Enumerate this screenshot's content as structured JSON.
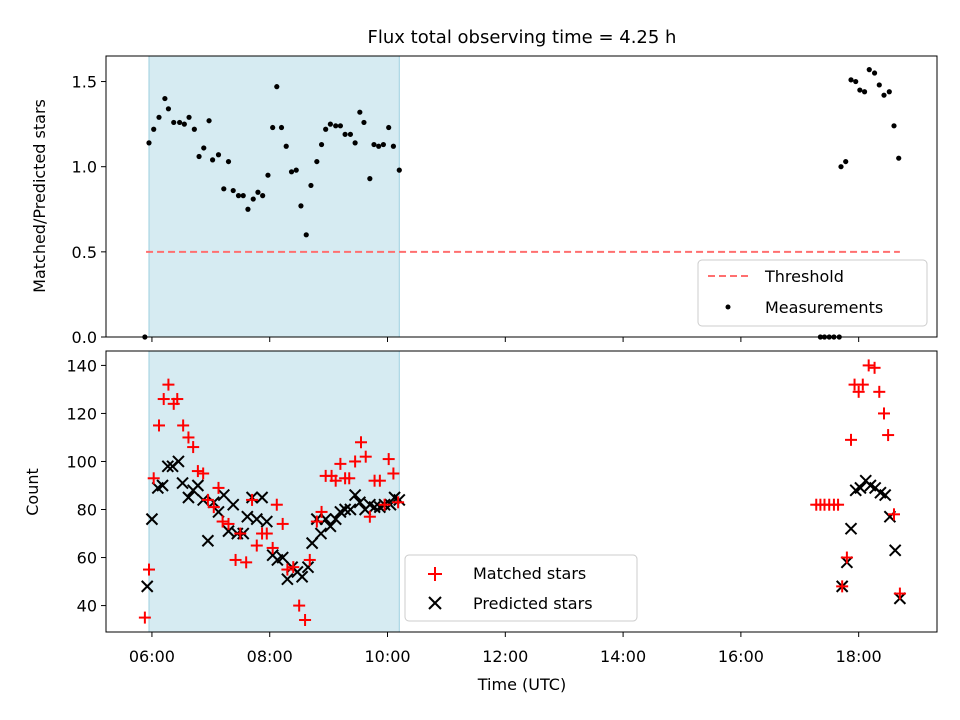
{
  "chart_data": {
    "title": "Flux total observing time = 4.25 h",
    "x_tick_labels": [
      "06:00",
      "08:00",
      "10:00",
      "12:00",
      "14:00",
      "16:00",
      "18:00"
    ],
    "x_ticks_hours": [
      6,
      8,
      10,
      12,
      14,
      16,
      18
    ],
    "xlabel": "Time (UTC)",
    "xlim_hours": [
      5.22,
      19.33
    ],
    "shaded_interval_hours": [
      5.95,
      10.2
    ],
    "colors": {
      "matched": "#ff0000",
      "predicted": "#000000",
      "threshold": "#ff6f6f",
      "shade": "#add8e6",
      "measurement": "#000000"
    },
    "panels": [
      {
        "type": "scatter",
        "ylabel": "Matched/Predicted stars",
        "ylim": [
          0,
          1.65
        ],
        "y_ticks": [
          0.0,
          0.5,
          1.0,
          1.5
        ],
        "y_tick_labels": [
          "0.0",
          "0.5",
          "1.0",
          "1.5"
        ],
        "threshold": {
          "label": "Threshold",
          "y": 0.5,
          "x_range_hours": [
            5.9,
            18.7
          ]
        },
        "legend": [
          "Threshold",
          "Measurements"
        ],
        "legend_position": "lower-right",
        "series": [
          {
            "name": "Measurements",
            "points": [
              [
                5.88,
                0.0
              ],
              [
                5.95,
                1.14
              ],
              [
                6.03,
                1.22
              ],
              [
                6.12,
                1.29
              ],
              [
                6.22,
                1.4
              ],
              [
                6.28,
                1.34
              ],
              [
                6.37,
                1.26
              ],
              [
                6.47,
                1.26
              ],
              [
                6.55,
                1.25
              ],
              [
                6.63,
                1.29
              ],
              [
                6.72,
                1.22
              ],
              [
                6.8,
                1.06
              ],
              [
                6.88,
                1.11
              ],
              [
                6.97,
                1.27
              ],
              [
                7.03,
                1.04
              ],
              [
                7.13,
                1.07
              ],
              [
                7.22,
                0.87
              ],
              [
                7.3,
                1.03
              ],
              [
                7.38,
                0.86
              ],
              [
                7.47,
                0.83
              ],
              [
                7.55,
                0.83
              ],
              [
                7.63,
                0.75
              ],
              [
                7.72,
                0.81
              ],
              [
                7.8,
                0.85
              ],
              [
                7.88,
                0.83
              ],
              [
                7.97,
                0.95
              ],
              [
                8.05,
                1.23
              ],
              [
                8.12,
                1.47
              ],
              [
                8.2,
                1.23
              ],
              [
                8.28,
                1.12
              ],
              [
                8.37,
                0.97
              ],
              [
                8.45,
                0.98
              ],
              [
                8.53,
                0.77
              ],
              [
                8.62,
                0.6
              ],
              [
                8.7,
                0.89
              ],
              [
                8.8,
                1.03
              ],
              [
                8.88,
                1.13
              ],
              [
                8.95,
                1.22
              ],
              [
                9.03,
                1.25
              ],
              [
                9.12,
                1.24
              ],
              [
                9.2,
                1.24
              ],
              [
                9.28,
                1.19
              ],
              [
                9.37,
                1.19
              ],
              [
                9.45,
                1.14
              ],
              [
                9.53,
                1.32
              ],
              [
                9.6,
                1.26
              ],
              [
                9.7,
                0.93
              ],
              [
                9.77,
                1.13
              ],
              [
                9.85,
                1.12
              ],
              [
                9.93,
                1.13
              ],
              [
                10.02,
                1.23
              ],
              [
                10.1,
                1.12
              ],
              [
                10.2,
                0.98
              ],
              [
                17.35,
                0.0
              ],
              [
                17.42,
                0.0
              ],
              [
                17.5,
                0.0
              ],
              [
                17.58,
                0.0
              ],
              [
                17.67,
                0.0
              ],
              [
                17.7,
                1.0
              ],
              [
                17.78,
                1.03
              ],
              [
                17.87,
                1.51
              ],
              [
                17.95,
                1.5
              ],
              [
                18.02,
                1.45
              ],
              [
                18.1,
                1.44
              ],
              [
                18.18,
                1.57
              ],
              [
                18.27,
                1.55
              ],
              [
                18.35,
                1.48
              ],
              [
                18.43,
                1.42
              ],
              [
                18.52,
                1.44
              ],
              [
                18.6,
                1.24
              ],
              [
                18.68,
                1.05
              ]
            ]
          }
        ]
      },
      {
        "type": "scatter",
        "ylabel": "Count",
        "ylim": [
          29,
          146
        ],
        "y_ticks": [
          40,
          60,
          80,
          100,
          120,
          140
        ],
        "y_tick_labels": [
          "40",
          "60",
          "80",
          "100",
          "120",
          "140"
        ],
        "legend": [
          "Matched stars",
          "Predicted stars"
        ],
        "legend_position": "lower-center",
        "series": [
          {
            "name": "Matched stars",
            "marker": "plus",
            "points": [
              [
                5.88,
                35
              ],
              [
                5.95,
                55
              ],
              [
                6.03,
                93
              ],
              [
                6.12,
                115
              ],
              [
                6.2,
                126
              ],
              [
                6.28,
                132
              ],
              [
                6.37,
                124
              ],
              [
                6.43,
                126
              ],
              [
                6.53,
                115
              ],
              [
                6.62,
                110
              ],
              [
                6.7,
                106
              ],
              [
                6.78,
                96
              ],
              [
                6.87,
                95
              ],
              [
                6.95,
                84
              ],
              [
                7.05,
                81
              ],
              [
                7.13,
                89
              ],
              [
                7.2,
                75
              ],
              [
                7.3,
                74
              ],
              [
                7.42,
                59
              ],
              [
                7.5,
                70
              ],
              [
                7.6,
                58
              ],
              [
                7.7,
                84
              ],
              [
                7.78,
                65
              ],
              [
                7.87,
                70
              ],
              [
                7.95,
                70
              ],
              [
                8.05,
                64
              ],
              [
                8.12,
                82
              ],
              [
                8.22,
                74
              ],
              [
                8.3,
                55
              ],
              [
                8.4,
                56
              ],
              [
                8.5,
                40
              ],
              [
                8.6,
                34
              ],
              [
                8.68,
                59
              ],
              [
                8.8,
                75
              ],
              [
                8.88,
                79
              ],
              [
                8.95,
                94
              ],
              [
                9.05,
                94
              ],
              [
                9.12,
                92
              ],
              [
                9.2,
                99
              ],
              [
                9.28,
                93
              ],
              [
                9.35,
                93
              ],
              [
                9.45,
                100
              ],
              [
                9.55,
                108
              ],
              [
                9.63,
                102
              ],
              [
                9.7,
                77
              ],
              [
                9.78,
                92
              ],
              [
                9.87,
                92
              ],
              [
                9.95,
                82
              ],
              [
                10.02,
                101
              ],
              [
                10.1,
                95
              ],
              [
                10.18,
                83
              ],
              [
                17.28,
                82
              ],
              [
                17.35,
                82
              ],
              [
                17.42,
                82
              ],
              [
                17.5,
                82
              ],
              [
                17.58,
                82
              ],
              [
                17.65,
                82
              ],
              [
                17.72,
                48
              ],
              [
                17.8,
                60
              ],
              [
                17.87,
                109
              ],
              [
                17.93,
                132
              ],
              [
                18.0,
                129
              ],
              [
                18.07,
                132
              ],
              [
                18.17,
                140
              ],
              [
                18.27,
                139
              ],
              [
                18.35,
                129
              ],
              [
                18.43,
                120
              ],
              [
                18.5,
                111
              ],
              [
                18.6,
                78
              ],
              [
                18.7,
                45
              ]
            ]
          },
          {
            "name": "Predicted stars",
            "marker": "x",
            "points": [
              [
                5.92,
                48
              ],
              [
                6.0,
                76
              ],
              [
                6.1,
                89
              ],
              [
                6.18,
                90
              ],
              [
                6.27,
                98
              ],
              [
                6.35,
                98
              ],
              [
                6.45,
                100
              ],
              [
                6.52,
                91
              ],
              [
                6.62,
                85
              ],
              [
                6.7,
                88
              ],
              [
                6.78,
                90
              ],
              [
                6.87,
                84
              ],
              [
                6.95,
                67
              ],
              [
                7.05,
                83
              ],
              [
                7.13,
                79
              ],
              [
                7.22,
                86
              ],
              [
                7.3,
                71
              ],
              [
                7.38,
                82
              ],
              [
                7.45,
                70
              ],
              [
                7.55,
                70
              ],
              [
                7.62,
                77
              ],
              [
                7.7,
                85
              ],
              [
                7.78,
                76
              ],
              [
                7.87,
                85
              ],
              [
                7.95,
                75
              ],
              [
                8.05,
                61
              ],
              [
                8.13,
                59
              ],
              [
                8.22,
                60
              ],
              [
                8.3,
                51
              ],
              [
                8.38,
                56
              ],
              [
                8.47,
                54
              ],
              [
                8.55,
                52
              ],
              [
                8.65,
                56
              ],
              [
                8.72,
                66
              ],
              [
                8.8,
                76
              ],
              [
                8.87,
                70
              ],
              [
                8.95,
                76
              ],
              [
                9.03,
                73
              ],
              [
                9.12,
                76
              ],
              [
                9.2,
                79
              ],
              [
                9.28,
                80
              ],
              [
                9.37,
                80
              ],
              [
                9.45,
                86
              ],
              [
                9.53,
                83
              ],
              [
                9.62,
                80
              ],
              [
                9.7,
                82
              ],
              [
                9.78,
                81
              ],
              [
                9.87,
                81
              ],
              [
                9.95,
                82
              ],
              [
                10.05,
                82
              ],
              [
                10.12,
                85
              ],
              [
                10.2,
                84
              ],
              [
                17.72,
                48
              ],
              [
                17.8,
                58
              ],
              [
                17.87,
                72
              ],
              [
                17.95,
                88
              ],
              [
                18.03,
                89
              ],
              [
                18.12,
                92
              ],
              [
                18.2,
                90
              ],
              [
                18.28,
                89
              ],
              [
                18.37,
                87
              ],
              [
                18.45,
                86
              ],
              [
                18.53,
                77
              ],
              [
                18.62,
                63
              ],
              [
                18.7,
                43
              ]
            ]
          }
        ]
      }
    ]
  }
}
